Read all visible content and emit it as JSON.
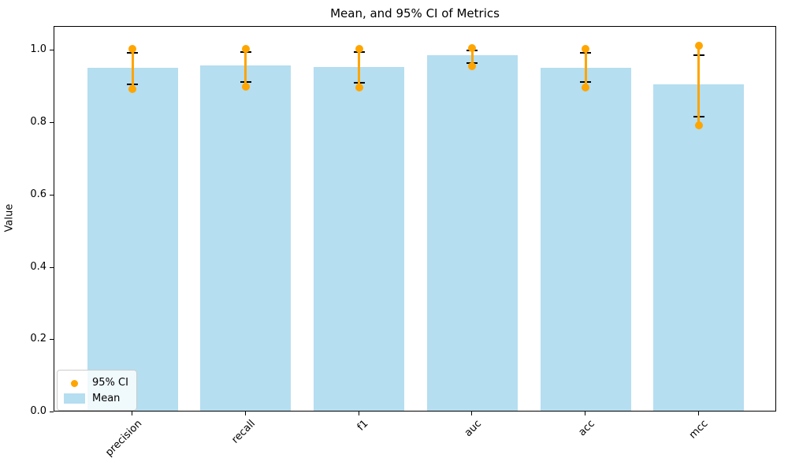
{
  "figure": {
    "title": "Mean, and 95% CI of Metrics",
    "ylabel": "Value"
  },
  "legend": {
    "items": [
      {
        "label": "95% CI",
        "type": "line-marker",
        "color": "#FFA500"
      },
      {
        "label": "Mean",
        "type": "patch",
        "color": "#B5DEF0"
      }
    ]
  },
  "chart_data": {
    "type": "bar",
    "title": "Mean, and 95% CI of Metrics",
    "xlabel": "",
    "ylabel": "Value",
    "categories": [
      "precision",
      "recall",
      "f1",
      "auc",
      "acc",
      "mcc"
    ],
    "series": [
      {
        "name": "Mean",
        "values": [
          0.949,
          0.954,
          0.95,
          0.984,
          0.949,
          0.903
        ]
      },
      {
        "name": "95% CI low",
        "values": [
          0.894,
          0.9,
          0.898,
          0.958,
          0.898,
          0.794
        ]
      },
      {
        "name": "95% CI high",
        "values": [
          1.004,
          1.006,
          1.006,
          1.007,
          1.005,
          1.014
        ]
      },
      {
        "name": "Error cap low",
        "values": [
          0.907,
          0.913,
          0.911,
          0.965,
          0.913,
          0.818
        ]
      },
      {
        "name": "Error cap high",
        "values": [
          0.993,
          0.996,
          0.996,
          1.001,
          0.995,
          0.988
        ]
      }
    ],
    "yticks": [
      0.0,
      0.2,
      0.4,
      0.6,
      0.8,
      1.0
    ],
    "ytick_labels": [
      "0.0",
      "0.2",
      "0.4",
      "0.6",
      "0.8",
      "1.0"
    ],
    "ylim": [
      0,
      1.066
    ],
    "grid": false,
    "legend_position": "lower left",
    "bar_color": "#B5DEF0",
    "ci_color": "#FFA500",
    "cap_color": "#000000",
    "bar_width_fraction": 0.8
  }
}
